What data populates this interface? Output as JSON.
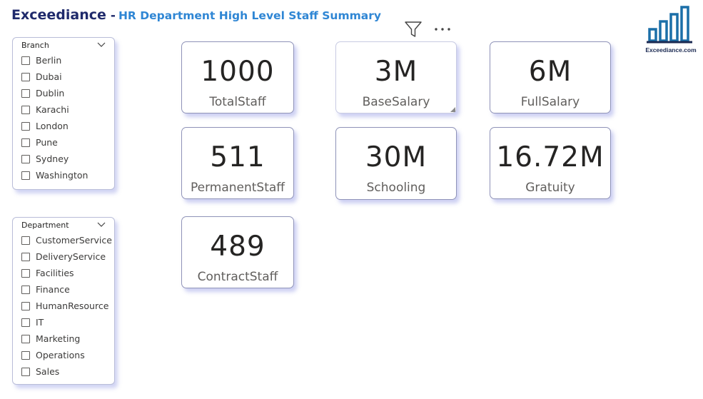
{
  "header": {
    "brand": "Exceediance",
    "separator": "-",
    "subtitle": "HR Department High Level Staff Summary"
  },
  "logo": {
    "text": "Exceediance.com",
    "icon": "bar-chart-logo-icon",
    "color": "#1b6fa8"
  },
  "toolbar": {
    "filter_icon": "filter-icon",
    "more_icon": "more-options-icon",
    "more_glyph": "···"
  },
  "branch_slicer": {
    "title": "Branch",
    "items": [
      "Berlin",
      "Dubai",
      "Dublin",
      "Karachi",
      "London",
      "Pune",
      "Sydney",
      "Washington"
    ]
  },
  "department_slicer": {
    "title": "Department",
    "items": [
      "CustomerService",
      "DeliveryService",
      "Facilities",
      "Finance",
      "HumanResource",
      "IT",
      "Marketing",
      "Operations",
      "Sales"
    ]
  },
  "cards": [
    {
      "value": "1000",
      "label": "TotalStaff"
    },
    {
      "value": "3M",
      "label": "BaseSalary"
    },
    {
      "value": "6M",
      "label": "FullSalary"
    },
    {
      "value": "511",
      "label": "PermanentStaff"
    },
    {
      "value": "30M",
      "label": "Schooling"
    },
    {
      "value": "16.72M",
      "label": "Gratuity"
    },
    {
      "value": "489",
      "label": "ContractStaff"
    }
  ],
  "colors": {
    "brand": "#1f2a6b",
    "subtitle": "#2f86d4",
    "card_shadow": "#7882dc"
  }
}
